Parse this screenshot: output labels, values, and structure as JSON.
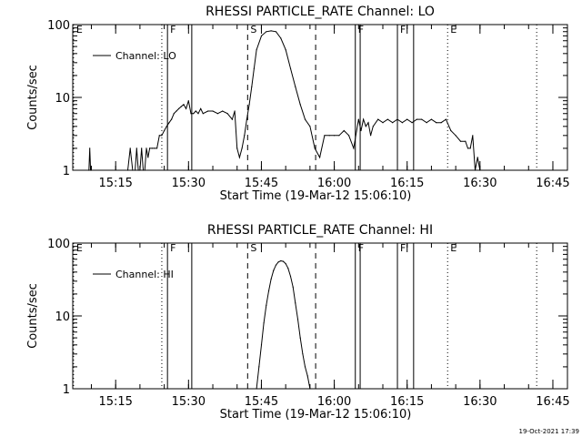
{
  "timestamp": "19-Oct-2021 17:39",
  "chart_data": [
    {
      "type": "line",
      "title": "RHESSI PARTICLE_RATE Channel: LO",
      "xlabel": "Start Time (19-Mar-12 15:06:10)",
      "ylabel": "Counts/sec",
      "y_scale": "log",
      "ylim": [
        1,
        100
      ],
      "xlim": [
        "15:06:10",
        "16:48:00"
      ],
      "x_ticks": [
        "15:15",
        "15:30",
        "15:45",
        "16:00",
        "16:15",
        "16:30",
        "16:45"
      ],
      "y_ticks": [
        "1",
        "10",
        "100"
      ],
      "legend": {
        "position": "top-left",
        "entries": [
          "Channel: LO"
        ]
      },
      "markers": [
        {
          "time": "15:06:20",
          "label": "E",
          "style": "dotted"
        },
        {
          "time": "15:24:30",
          "label": "",
          "style": "dotted"
        },
        {
          "time": "15:25:40",
          "label": "F",
          "style": "solid"
        },
        {
          "time": "15:30:40",
          "label": "",
          "style": "solid"
        },
        {
          "time": "15:42:10",
          "label": "S",
          "style": "dashed"
        },
        {
          "time": "15:56:10",
          "label": "",
          "style": "dashed"
        },
        {
          "time": "16:04:20",
          "label": "F",
          "style": "solid"
        },
        {
          "time": "16:05:20",
          "label": "",
          "style": "solid"
        },
        {
          "time": "16:13:00",
          "label": "F",
          "style": "solid"
        },
        {
          "time": "16:16:20",
          "label": "",
          "style": "solid"
        },
        {
          "time": "16:23:20",
          "label": "E",
          "style": "dotted"
        },
        {
          "time": "16:41:40",
          "label": "",
          "style": "dotted"
        }
      ],
      "series": [
        {
          "name": "Channel: LO",
          "x": [
            "15:09:30",
            "15:09:40",
            "15:09:50",
            "15:10:00",
            "15:17:30",
            "15:18:00",
            "15:18:30",
            "15:19:00",
            "15:19:20",
            "15:19:40",
            "15:20:00",
            "15:20:20",
            "15:20:40",
            "15:21:00",
            "15:21:20",
            "15:21:40",
            "15:22:00",
            "15:22:30",
            "15:23:00",
            "15:23:30",
            "15:24:00",
            "15:24:30",
            "15:25:00",
            "15:25:30",
            "15:26:00",
            "15:26:30",
            "15:27:00",
            "15:27:30",
            "15:28:00",
            "15:28:30",
            "15:29:00",
            "15:29:30",
            "15:30:00",
            "15:30:30",
            "15:31:00",
            "15:31:30",
            "15:32:00",
            "15:32:30",
            "15:33:00",
            "15:34:00",
            "15:35:00",
            "15:36:00",
            "15:37:00",
            "15:38:00",
            "15:39:00",
            "15:39:30",
            "15:40:00",
            "15:40:30",
            "15:41:00",
            "15:41:30",
            "15:42:00",
            "15:42:30",
            "15:43:00",
            "15:43:30",
            "15:44:00",
            "15:45:00",
            "15:46:00",
            "15:47:00",
            "15:48:00",
            "15:49:00",
            "15:50:00",
            "15:51:00",
            "15:52:00",
            "15:53:00",
            "15:54:00",
            "15:55:00",
            "15:56:00",
            "15:57:00",
            "15:58:00",
            "15:59:00",
            "16:00:00",
            "16:01:00",
            "16:02:00",
            "16:03:00",
            "16:04:00",
            "16:05:00",
            "16:05:30",
            "16:06:00",
            "16:06:30",
            "16:07:00",
            "16:07:30",
            "16:08:00",
            "16:09:00",
            "16:10:00",
            "16:11:00",
            "16:12:00",
            "16:13:00",
            "16:14:00",
            "16:15:00",
            "16:16:00",
            "16:17:00",
            "16:18:00",
            "16:19:00",
            "16:20:00",
            "16:21:00",
            "16:22:00",
            "16:23:00",
            "16:24:00",
            "16:25:00",
            "16:26:00",
            "16:27:00",
            "16:27:30",
            "16:28:00",
            "16:28:30",
            "16:29:00",
            "16:29:30",
            "16:30:00"
          ],
          "values": [
            1,
            2,
            1,
            1,
            1,
            2,
            1,
            1,
            2,
            1,
            1,
            2,
            1,
            1,
            2,
            1.5,
            2,
            2,
            2,
            2,
            3,
            3,
            3.5,
            4,
            4.5,
            5,
            6,
            6.5,
            7,
            7.5,
            8,
            7,
            9,
            6,
            6,
            6.5,
            6,
            7,
            6,
            6.5,
            6.5,
            6,
            6.5,
            6,
            5,
            6.5,
            2,
            1.5,
            2,
            3,
            5,
            8,
            14,
            25,
            45,
            70,
            80,
            82,
            80,
            65,
            45,
            25,
            14,
            8,
            5,
            4,
            2,
            1.5,
            3,
            3,
            3,
            3,
            3.5,
            3,
            2,
            5,
            3.5,
            5,
            4,
            4.5,
            3,
            4,
            5,
            4.5,
            5,
            4.5,
            5,
            4.5,
            5,
            4.5,
            5,
            5,
            4.5,
            5,
            4.5,
            4.5,
            5,
            3.5,
            3,
            2.5,
            2.5,
            2,
            2,
            3,
            1,
            1.5,
            1
          ]
        }
      ]
    },
    {
      "type": "line",
      "title": "RHESSI PARTICLE_RATE Channel: HI",
      "xlabel": "Start Time (19-Mar-12 15:06:10)",
      "ylabel": "Counts/sec",
      "y_scale": "log",
      "ylim": [
        1,
        100
      ],
      "xlim": [
        "15:06:10",
        "16:48:00"
      ],
      "x_ticks": [
        "15:15",
        "15:30",
        "15:45",
        "16:00",
        "16:15",
        "16:30",
        "16:45"
      ],
      "y_ticks": [
        "1",
        "10",
        "100"
      ],
      "legend": {
        "position": "top-left",
        "entries": [
          "Channel: HI"
        ]
      },
      "markers": [
        {
          "time": "15:06:20",
          "label": "E",
          "style": "dotted"
        },
        {
          "time": "15:24:30",
          "label": "",
          "style": "dotted"
        },
        {
          "time": "15:25:40",
          "label": "F",
          "style": "solid"
        },
        {
          "time": "15:30:40",
          "label": "",
          "style": "solid"
        },
        {
          "time": "15:42:10",
          "label": "S",
          "style": "dashed"
        },
        {
          "time": "15:56:10",
          "label": "",
          "style": "dashed"
        },
        {
          "time": "16:04:20",
          "label": "F",
          "style": "solid"
        },
        {
          "time": "16:05:20",
          "label": "",
          "style": "solid"
        },
        {
          "time": "16:13:00",
          "label": "F",
          "style": "solid"
        },
        {
          "time": "16:16:20",
          "label": "",
          "style": "solid"
        },
        {
          "time": "16:23:20",
          "label": "E",
          "style": "dotted"
        },
        {
          "time": "16:41:40",
          "label": "",
          "style": "dotted"
        }
      ],
      "series": [
        {
          "name": "Channel: HI",
          "x": [
            "15:44:00",
            "15:44:30",
            "15:45:00",
            "15:45:30",
            "15:46:00",
            "15:46:30",
            "15:47:00",
            "15:47:30",
            "15:48:00",
            "15:48:30",
            "15:49:00",
            "15:49:30",
            "15:50:00",
            "15:50:30",
            "15:51:00",
            "15:51:30",
            "15:52:00",
            "15:52:30",
            "15:53:00",
            "15:53:30",
            "15:54:00",
            "15:54:30",
            "15:55:00"
          ],
          "values": [
            1,
            2,
            4,
            8,
            14,
            22,
            32,
            42,
            50,
            55,
            57,
            56,
            52,
            45,
            35,
            25,
            15,
            9,
            5,
            3,
            2,
            1.5,
            1
          ]
        }
      ]
    }
  ]
}
